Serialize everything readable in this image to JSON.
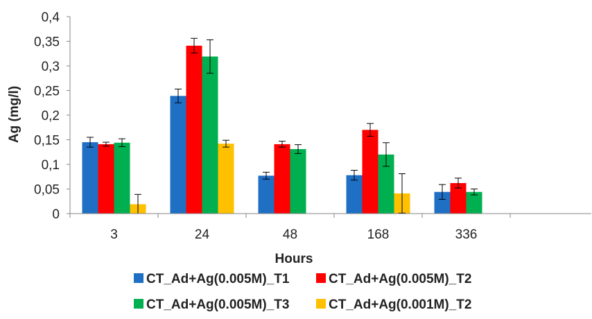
{
  "chart_data": {
    "type": "bar",
    "xlabel": "Hours",
    "ylabel": "Ag (mg/l)",
    "ylim": [
      0,
      0.4
    ],
    "y_ticks": [
      "0",
      "0,05",
      "0,1",
      "0,15",
      "0,2",
      "0,25",
      "0,3",
      "0,35",
      "0,4"
    ],
    "categories": [
      "3",
      "24",
      "48",
      "168",
      "336",
      ""
    ],
    "grid": false,
    "legend_position": "bottom",
    "series": [
      {
        "name": "CT_Ad+Ag(0.005M)_T1",
        "color": "#1F6FC5",
        "values": [
          0.145,
          0.239,
          0.077,
          0.078,
          0.044,
          null
        ],
        "errors": [
          0.01,
          0.014,
          0.007,
          0.01,
          0.015,
          null
        ]
      },
      {
        "name": "CT_Ad+Ag(0.005M)_T2",
        "color": "#FF0000",
        "values": [
          0.141,
          0.341,
          0.141,
          0.17,
          0.062,
          null
        ],
        "errors": [
          0.004,
          0.015,
          0.006,
          0.013,
          0.01,
          null
        ]
      },
      {
        "name": "CT_Ad+Ag(0.005M)_T3",
        "color": "#00B050",
        "values": [
          0.144,
          0.319,
          0.131,
          0.12,
          0.044,
          null
        ],
        "errors": [
          0.008,
          0.034,
          0.009,
          0.024,
          0.006,
          null
        ]
      },
      {
        "name": "CT_Ad+Ag(0.001M)_T2",
        "color": "#FFC000",
        "values": [
          0.019,
          0.142,
          null,
          0.041,
          null,
          null
        ],
        "errors": [
          0.02,
          0.007,
          null,
          0.04,
          null,
          null
        ]
      }
    ]
  }
}
